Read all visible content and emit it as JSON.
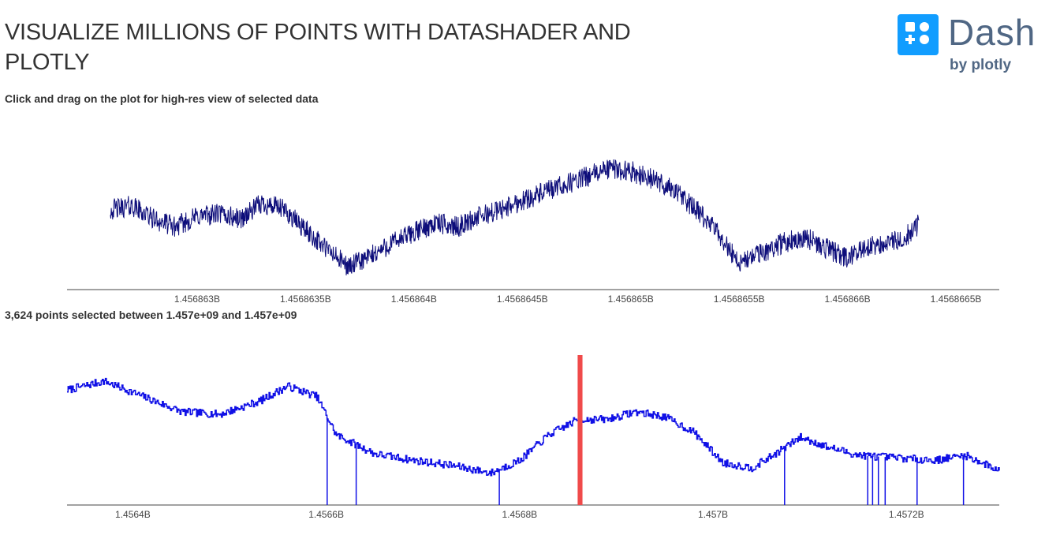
{
  "header": {
    "title": "VISUALIZE MILLIONS OF POINTS WITH DATASHADER AND PLOTLY",
    "subtitle": "Click and drag on the plot for high-res view of selected data",
    "logo_word": "Dash",
    "logo_by": "by plotly",
    "logo_color": "#119dff",
    "logo_text_color": "#506784"
  },
  "selection_info": "3,624 points selected between 1.457e+09 and 1.457e+09",
  "chart_data": [
    {
      "type": "line",
      "color": "#0d0d7a",
      "xlim": [
        1456862400,
        1456866700
      ],
      "x_ticks": [
        1456863000,
        1456863500,
        1456864000,
        1456864500,
        1456865000,
        1456865500,
        1456866000,
        1456866500
      ],
      "tick_labels": [
        "1.456863B",
        "1.4568635B",
        "1.456864B",
        "1.4568645B",
        "1.456865B",
        "1.4568655B",
        "1.456866B",
        "1.4568665B"
      ],
      "x": [
        1456862600,
        1456862700,
        1456862800,
        1456862900,
        1456863000,
        1456863100,
        1456863200,
        1456863300,
        1456863400,
        1456863500,
        1456863600,
        1456863700,
        1456863800,
        1456863900,
        1456864000,
        1456864100,
        1456864200,
        1456864300,
        1456864400,
        1456864500,
        1456864600,
        1456864700,
        1456864800,
        1456864900,
        1456865000,
        1456865100,
        1456865200,
        1456865300,
        1456865400,
        1456865500,
        1456865600,
        1456865700,
        1456865800,
        1456865900,
        1456866000,
        1456866100,
        1456866200,
        1456866300,
        1456866330
      ],
      "y": [
        0.55,
        0.58,
        0.48,
        0.42,
        0.5,
        0.52,
        0.48,
        0.6,
        0.55,
        0.4,
        0.25,
        0.12,
        0.2,
        0.3,
        0.38,
        0.45,
        0.42,
        0.5,
        0.55,
        0.62,
        0.68,
        0.74,
        0.8,
        0.86,
        0.84,
        0.78,
        0.7,
        0.55,
        0.38,
        0.15,
        0.22,
        0.3,
        0.35,
        0.26,
        0.18,
        0.28,
        0.3,
        0.38,
        0.45
      ],
      "ylim": [
        -0.05,
        1.0
      ]
    },
    {
      "type": "line",
      "color": "#1010e6",
      "xlim": [
        1456332000,
        1457296000
      ],
      "x_ticks": [
        1456400000,
        1456600000,
        1456800000,
        1457000000,
        1457200000
      ],
      "tick_labels": [
        "1.4564B",
        "1.4566B",
        "1.4568B",
        "1.457B",
        "1.4572B"
      ],
      "x": [
        1456332000,
        1456370000,
        1456410000,
        1456450000,
        1456490000,
        1456530000,
        1456560000,
        1456590000,
        1456610000,
        1456650000,
        1456690000,
        1456730000,
        1456770000,
        1456800000,
        1456830000,
        1456860000,
        1456890000,
        1456920000,
        1456950000,
        1456980000,
        1457010000,
        1457040000,
        1457060000,
        1457090000,
        1457120000,
        1457150000,
        1457190000,
        1457230000,
        1457260000,
        1457296000
      ],
      "y": [
        0.85,
        0.92,
        0.8,
        0.68,
        0.66,
        0.76,
        0.88,
        0.8,
        0.5,
        0.35,
        0.3,
        0.26,
        0.2,
        0.3,
        0.5,
        0.62,
        0.62,
        0.68,
        0.64,
        0.52,
        0.28,
        0.24,
        0.33,
        0.48,
        0.4,
        0.34,
        0.32,
        0.3,
        0.34,
        0.22
      ],
      "ylim": [
        -0.05,
        1.0
      ],
      "spike_x": [
        1456601000,
        1456631000,
        1456779000,
        1457074000,
        1457160000,
        1457165000,
        1457171000,
        1457178000,
        1457211000,
        1457259000
      ],
      "highlight_x": [
        1456860000,
        1456865000
      ],
      "highlight_color": "#f04a4a"
    }
  ]
}
